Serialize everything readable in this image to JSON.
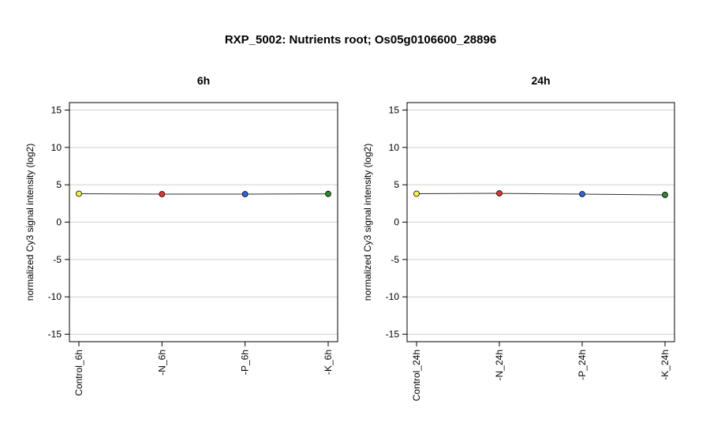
{
  "title": "RXP_5002: Nutrients root; Os05g0106600_28896",
  "chart_data": [
    {
      "type": "line",
      "title": "6h",
      "ylabel": "normalized Cy3 signal intensity (log2)",
      "xlabel": "",
      "categories": [
        "Control_6h",
        "-N_6h",
        "-P_6h",
        "-K_6h"
      ],
      "values": [
        3.8,
        3.75,
        3.75,
        3.78
      ],
      "point_colors": [
        "#f5f542",
        "#e8352b",
        "#2f63d8",
        "#2e8b2e"
      ],
      "ylim": [
        -16,
        16
      ],
      "yticks": [
        -15,
        -10,
        -5,
        0,
        5,
        10,
        15
      ],
      "grid": true
    },
    {
      "type": "line",
      "title": "24h",
      "ylabel": "normalized Cy3 signal intensity (log2)",
      "xlabel": "",
      "categories": [
        "Control_24h",
        "-N_24h",
        "-P_24h",
        "-K_24h"
      ],
      "values": [
        3.8,
        3.85,
        3.75,
        3.65
      ],
      "point_colors": [
        "#f5f542",
        "#e8352b",
        "#2f63d8",
        "#2e8b2e"
      ],
      "ylim": [
        -16,
        16
      ],
      "yticks": [
        -15,
        -10,
        -5,
        0,
        5,
        10,
        15
      ],
      "grid": true
    }
  ]
}
